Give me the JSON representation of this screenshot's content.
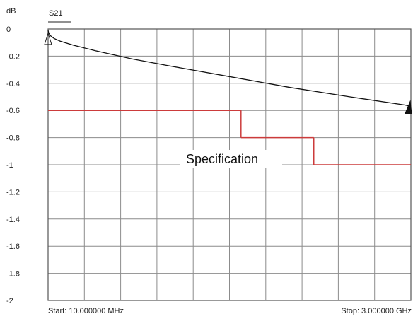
{
  "chart_data": {
    "type": "line",
    "y_unit": "dB",
    "trace_label": "S21",
    "spec_label": "Specification",
    "start_label": "Start: 10.000000 MHz",
    "stop_label": "Stop: 3.000000 GHz",
    "x_range_mhz": [
      10,
      3000
    ],
    "ylim": [
      -2,
      0
    ],
    "y_ticks": [
      0,
      -0.2,
      -0.4,
      -0.6,
      -0.8,
      -1,
      -1.2,
      -1.4,
      -1.6,
      -1.8,
      -2
    ],
    "y_tick_labels": [
      "0",
      "-0.2",
      "-0.4",
      "-0.6",
      "-0.8",
      "-1",
      "-1.2",
      "-1.4",
      "-1.6",
      "-1.8",
      "-2"
    ],
    "grid": true,
    "grid_divisions_x": 10,
    "colors": {
      "trace": "#111111",
      "spec": "#cc3b3b",
      "grid": "#8c8c8c",
      "frame": "#555555"
    },
    "series": [
      {
        "name": "S21",
        "x": [
          10,
          15,
          30,
          60,
          110,
          220,
          400,
          700,
          1000,
          1500,
          2000,
          2500,
          2950,
          3000
        ],
        "y": [
          -0.01,
          -0.03,
          -0.05,
          -0.07,
          -0.09,
          -0.12,
          -0.16,
          -0.22,
          -0.27,
          -0.35,
          -0.43,
          -0.5,
          -0.56,
          -0.57
        ]
      }
    ],
    "spec": {
      "name": "Specification",
      "segments": [
        {
          "x_start": 10,
          "x_end": 1600,
          "y": -0.6
        },
        {
          "x_start": 1600,
          "x_end": 2200,
          "y": -0.8
        },
        {
          "x_start": 2200,
          "x_end": 3000,
          "y": -1.0
        }
      ]
    }
  }
}
